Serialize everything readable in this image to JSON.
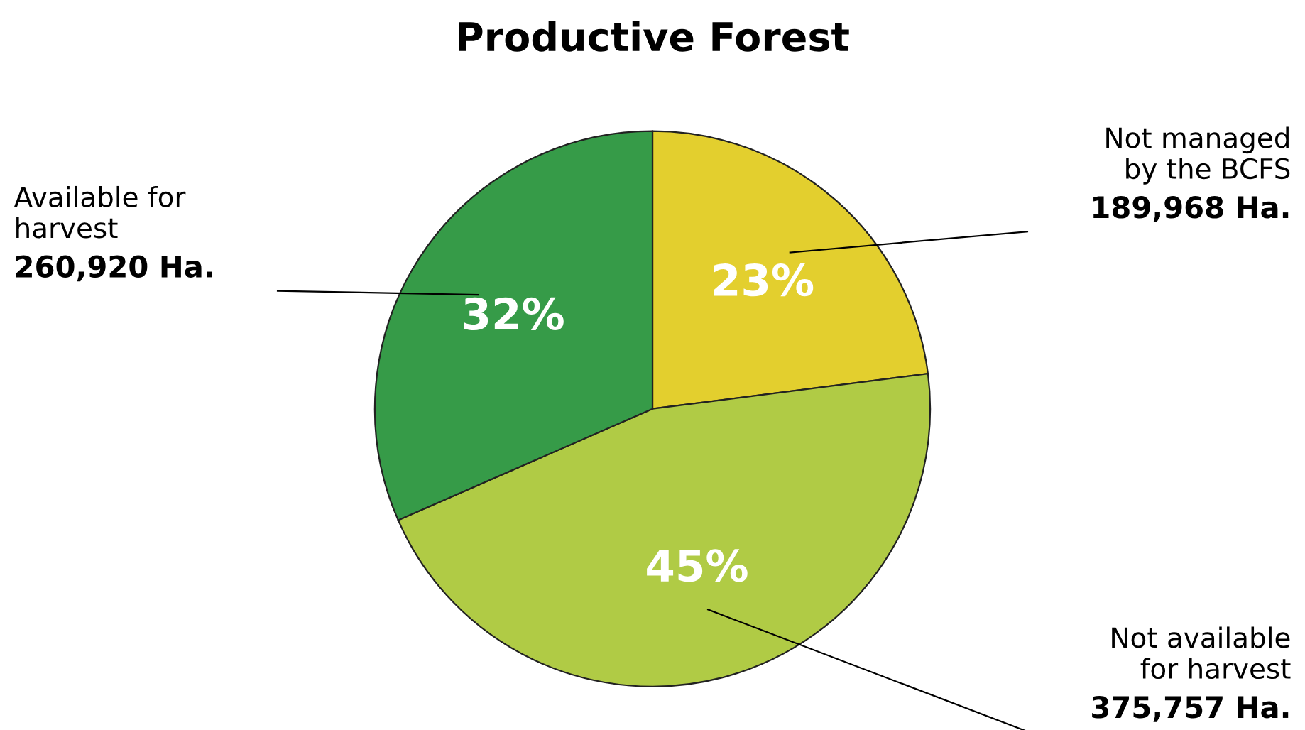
{
  "chart_data": {
    "type": "pie",
    "title": "Productive Forest",
    "categories": [
      "Not managed\nby the BCFS",
      "Not available\nfor harvest",
      "Available for\nharvest"
    ],
    "values": [
      189968,
      375757,
      260920
    ],
    "value_labels": [
      "189,968 Ha.",
      "375,757 Ha.",
      "260,920 Ha."
    ],
    "annotations": [
      "23%",
      "45%",
      "32%"
    ],
    "colors": [
      "#e3cf2e",
      "#b0cb45",
      "#369b48"
    ],
    "legend": false
  }
}
